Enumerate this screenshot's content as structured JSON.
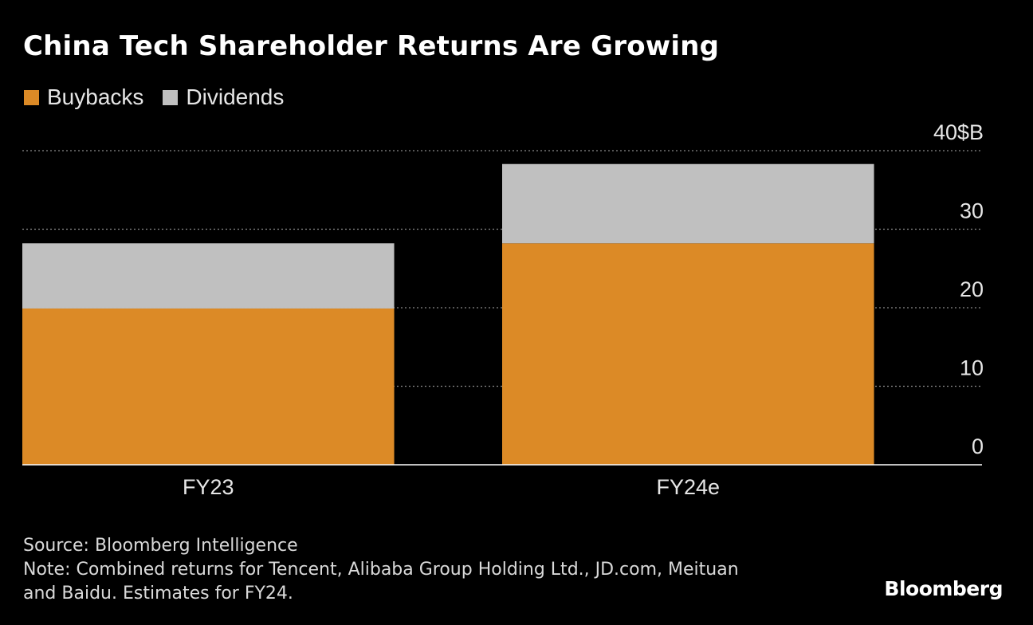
{
  "title": "China Tech Shareholder Returns Are Growing",
  "legend": {
    "items": [
      {
        "label": "Buybacks",
        "color": "#dc8a26"
      },
      {
        "label": "Dividends",
        "color": "#c0c0c0"
      }
    ]
  },
  "chart_data": {
    "type": "bar",
    "stacked": true,
    "categories": [
      "FY23",
      "FY24e"
    ],
    "series": [
      {
        "name": "Buybacks",
        "values": [
          19.9,
          28.2
        ],
        "color": "#dc8a26"
      },
      {
        "name": "Dividends",
        "values": [
          8.3,
          10.1
        ],
        "color": "#c0c0c0"
      }
    ],
    "ylim": [
      0,
      40
    ],
    "yticks": [
      0,
      10,
      20,
      30,
      40
    ],
    "ytick_labels": [
      "0",
      "10",
      "20",
      "30",
      "40$B"
    ],
    "yaxis_side": "right",
    "grid": true,
    "legend_position": "top-left"
  },
  "footer": {
    "source": "Source: Bloomberg Intelligence",
    "note_line1": "Note: Combined returns for Tencent, Alibaba Group Holding Ltd., JD.com, Meituan",
    "note_line2": "and Baidu. Estimates for FY24."
  },
  "logo": "Bloomberg"
}
